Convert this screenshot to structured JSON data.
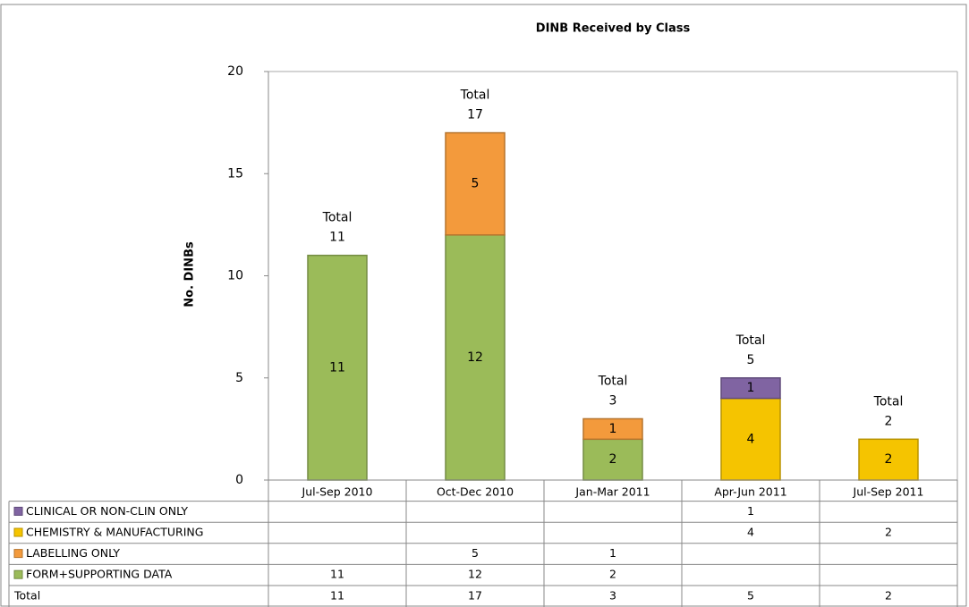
{
  "chart_data": {
    "type": "stacked_bar",
    "title": "DINB Received by Class",
    "y_label": "No. DINBs",
    "categories": [
      "Jul-Sep 2010",
      "Oct-Dec 2010",
      "Jan-Mar 2011",
      "Apr-Jun 2011",
      "Jul-Sep 2011"
    ],
    "series": [
      {
        "name": "FORM+SUPPORTING DATA",
        "color": "#9bbb59",
        "values": [
          11,
          12,
          2,
          null,
          null
        ]
      },
      {
        "name": "LABELLING ONLY",
        "color": "#f39a3c",
        "values": [
          null,
          5,
          1,
          null,
          null
        ]
      },
      {
        "name": "CHEMISTRY & MANUFACTURING",
        "color": "#f5c400",
        "values": [
          null,
          null,
          null,
          4,
          2
        ]
      },
      {
        "name": "CLINICAL OR NON-CLIN ONLY",
        "color": "#8064a2",
        "values": [
          null,
          null,
          null,
          1,
          null
        ]
      }
    ],
    "totals": {
      "name": "Total",
      "values": [
        11,
        17,
        3,
        5,
        2
      ]
    },
    "ylim": [
      0,
      20
    ],
    "yticks": [
      0,
      5,
      10,
      15,
      20
    ],
    "grid": false
  }
}
